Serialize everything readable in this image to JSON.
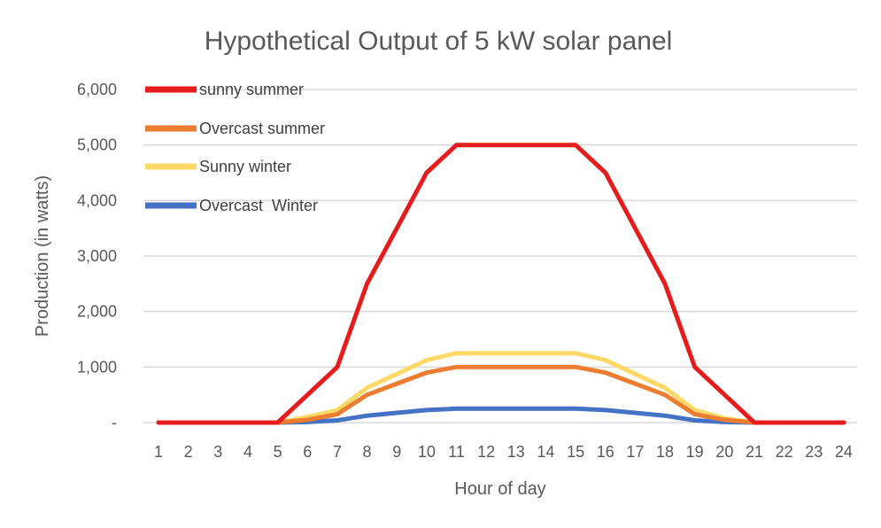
{
  "chart_data": {
    "type": "line",
    "title": "Hypothetical Output of 5 kW solar panel",
    "xlabel": "Hour of day",
    "ylabel": "Production (in watts)",
    "x": [
      1,
      2,
      3,
      4,
      5,
      6,
      7,
      8,
      9,
      10,
      11,
      12,
      13,
      14,
      15,
      16,
      17,
      18,
      19,
      20,
      21,
      22,
      23,
      24
    ],
    "ylim": [
      0,
      6000
    ],
    "yticks": [
      0,
      1000,
      2000,
      3000,
      4000,
      5000,
      6000
    ],
    "ytick_labels": [
      "-",
      "1,000",
      "2,000",
      "3,000",
      "4,000",
      "5,000",
      "6,000"
    ],
    "grid": "horizontal",
    "legend_placement": "top-left",
    "series": [
      {
        "name": "sunny summer",
        "color": "#e61c1c",
        "values": [
          0,
          0,
          0,
          0,
          0,
          500,
          1000,
          2500,
          3500,
          4500,
          5000,
          5000,
          5000,
          5000,
          5000,
          4500,
          3500,
          2500,
          1000,
          500,
          0,
          0,
          0,
          0
        ]
      },
      {
        "name": "Overcast summer",
        "color": "#ed7d31",
        "values": [
          0,
          0,
          0,
          0,
          0,
          50,
          150,
          500,
          700,
          900,
          1000,
          1000,
          1000,
          1000,
          1000,
          900,
          700,
          500,
          150,
          50,
          0,
          0,
          0,
          0
        ]
      },
      {
        "name": "Sunny winter",
        "color": "#ffd966",
        "values": [
          0,
          0,
          0,
          0,
          0,
          100,
          225,
          625,
          875,
          1125,
          1250,
          1250,
          1250,
          1250,
          1250,
          1125,
          875,
          625,
          225,
          75,
          0,
          0,
          0,
          0
        ]
      },
      {
        "name": "Overcast  Winter",
        "color": "#4472c4",
        "values": [
          0,
          0,
          0,
          0,
          0,
          10,
          40,
          125,
          175,
          225,
          250,
          250,
          250,
          250,
          250,
          225,
          175,
          125,
          40,
          10,
          0,
          0,
          0,
          0
        ]
      }
    ]
  }
}
